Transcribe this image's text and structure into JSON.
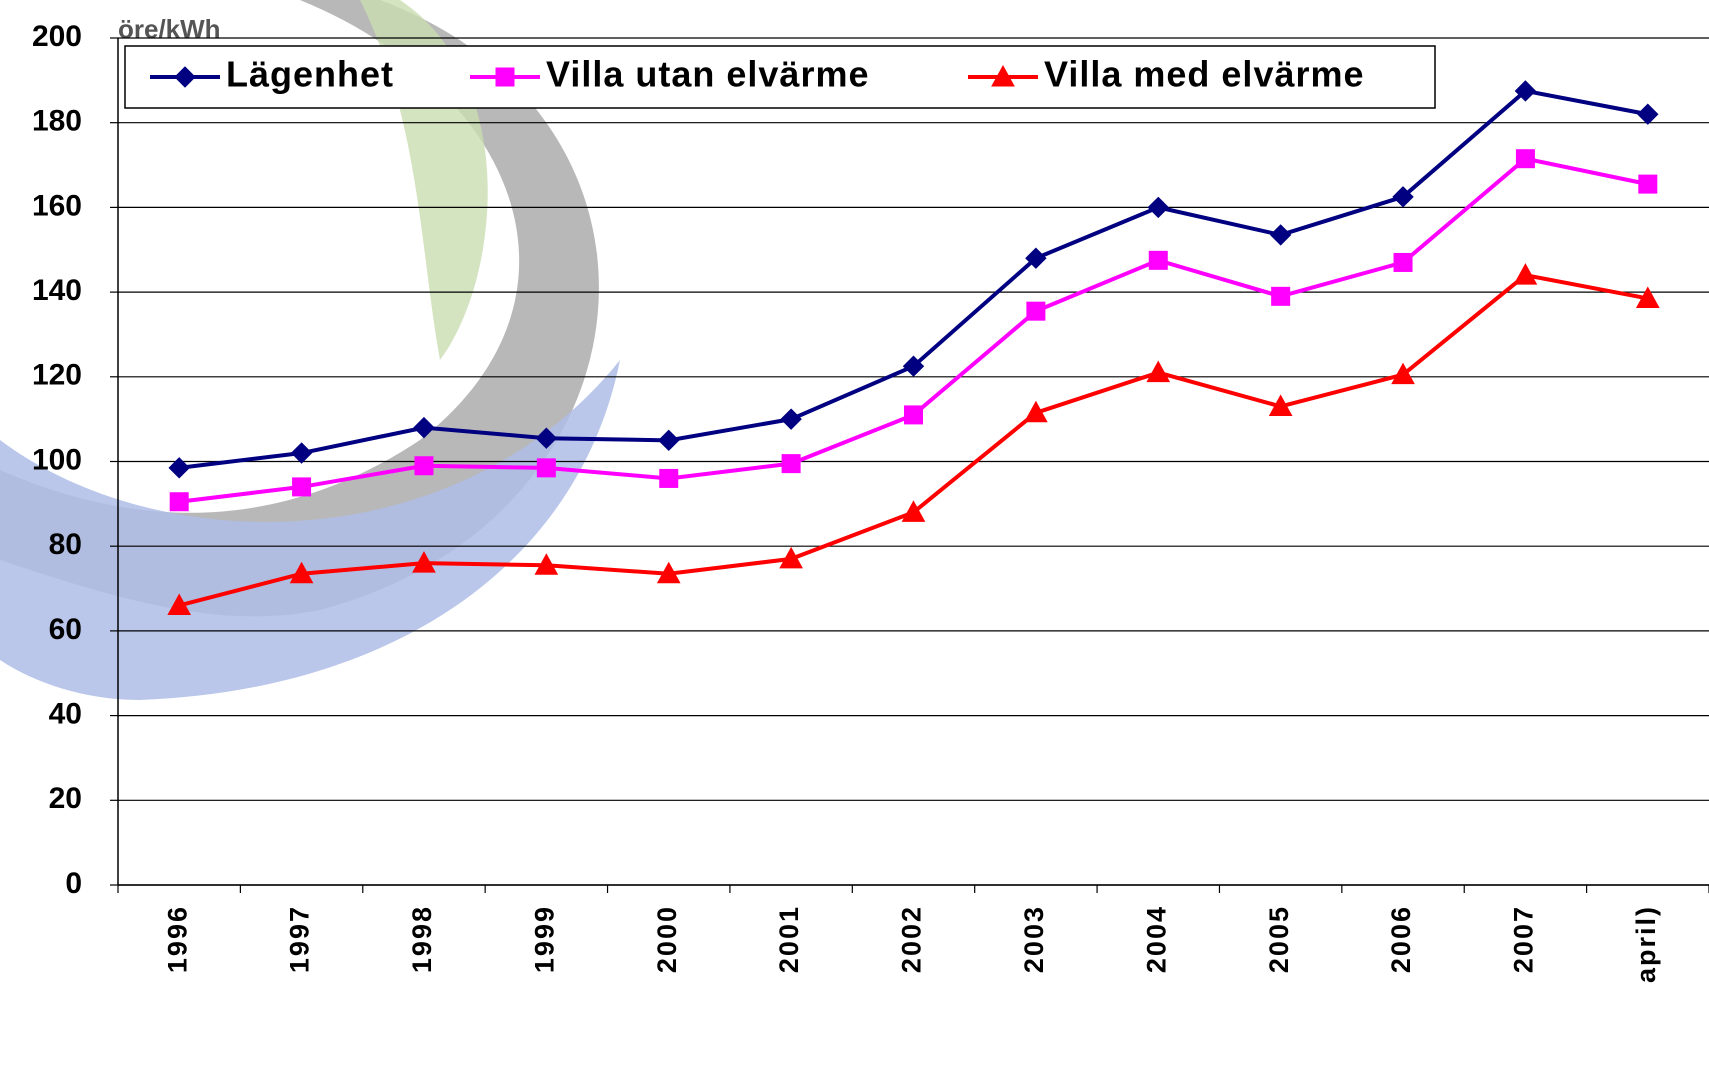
{
  "chart_data": {
    "type": "line",
    "y_label": "öre/kWh",
    "categories": [
      "1996",
      "1997",
      "1998",
      "1999",
      "2000",
      "2001",
      "2002",
      "2003",
      "2004",
      "2005",
      "2006",
      "2007",
      "april)"
    ],
    "series": [
      {
        "name": "Lägenhet",
        "color": "#000080",
        "marker": "diamond",
        "values": [
          98.5,
          102,
          108,
          105.5,
          105,
          110,
          122.5,
          148,
          160,
          153.5,
          162.5,
          187.5,
          182
        ]
      },
      {
        "name": "Villa utan elvärme",
        "color": "#ff00ff",
        "marker": "square",
        "values": [
          90.5,
          94,
          99,
          98.5,
          96,
          99.5,
          111,
          135.5,
          147.5,
          139,
          147,
          171.5,
          165.5
        ]
      },
      {
        "name": "Villa med elvärme",
        "color": "#ff0000",
        "marker": "triangle",
        "values": [
          66,
          73.5,
          76,
          75.5,
          73.5,
          77,
          88,
          111.5,
          121,
          113,
          120.5,
          144,
          138.5
        ]
      }
    ],
    "ylim": [
      0,
      200
    ],
    "yticks": [
      0,
      20,
      40,
      60,
      80,
      100,
      120,
      140,
      160,
      180,
      200
    ],
    "grid": true
  }
}
